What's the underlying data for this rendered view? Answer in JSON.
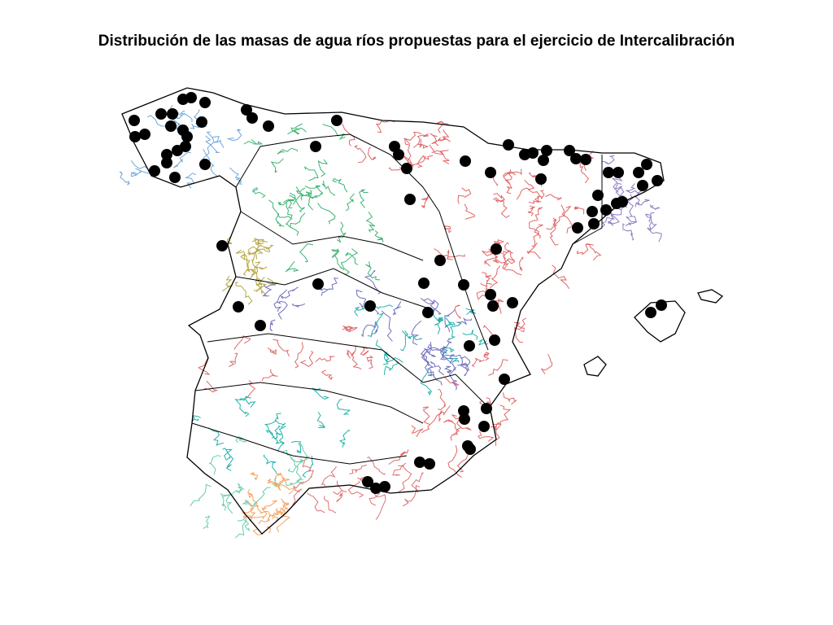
{
  "header": {
    "title": "Distribución de las masas de agua ríos propuestas para el ejercicio de Intercalibración"
  }
}
